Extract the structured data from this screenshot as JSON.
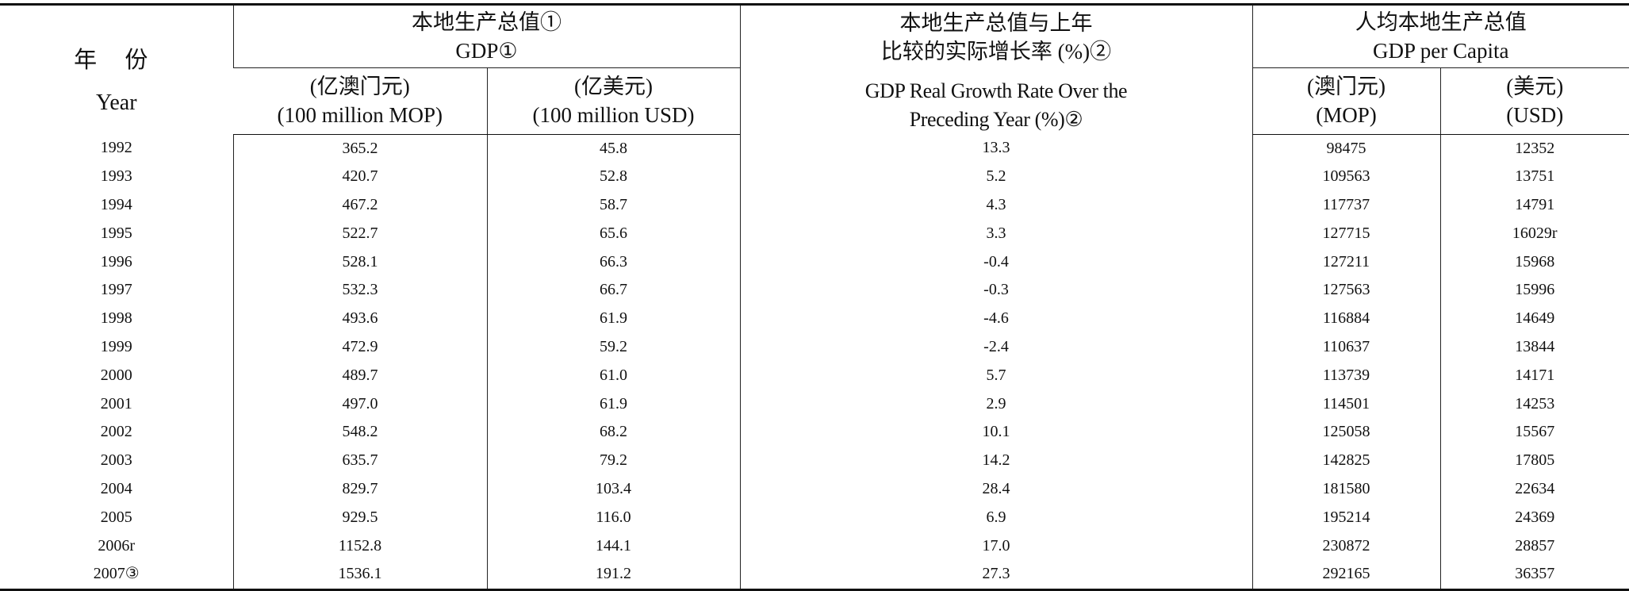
{
  "table": {
    "header": {
      "year_zh": "年 份",
      "year_en": "Year",
      "gdp_zh": "本地生产总值①",
      "gdp_en": "GDP①",
      "growth_zh_1": "本地生产总值与上年",
      "growth_zh_2": "比较的实际增长率 (%)②",
      "growth_en_1": "GDP Real Growth Rate Over the",
      "growth_en_2": "Preceding Year (%)②",
      "percap_zh": "人均本地生产总值",
      "percap_en": "GDP per Capita",
      "mop_zh": "(亿澳门元)",
      "mop_en": "(100 million MOP)",
      "usd_zh": "(亿美元)",
      "usd_en": "(100 million USD)",
      "pc_mop_zh": "(澳门元)",
      "pc_mop_en": "(MOP)",
      "pc_usd_zh": "(美元)",
      "pc_usd_en": "(USD)"
    },
    "rows": [
      {
        "year": "1992",
        "gdp_mop": "365.2",
        "gdp_usd": "45.8",
        "growth": "13.3",
        "pc_mop": "98475",
        "pc_usd": "12352"
      },
      {
        "year": "1993",
        "gdp_mop": "420.7",
        "gdp_usd": "52.8",
        "growth": "5.2",
        "pc_mop": "109563",
        "pc_usd": "13751"
      },
      {
        "year": "1994",
        "gdp_mop": "467.2",
        "gdp_usd": "58.7",
        "growth": "4.3",
        "pc_mop": "117737",
        "pc_usd": "14791"
      },
      {
        "year": "1995",
        "gdp_mop": "522.7",
        "gdp_usd": "65.6",
        "growth": "3.3",
        "pc_mop": "127715",
        "pc_usd": "16029r"
      },
      {
        "year": "1996",
        "gdp_mop": "528.1",
        "gdp_usd": "66.3",
        "growth": "-0.4",
        "pc_mop": "127211",
        "pc_usd": "15968"
      },
      {
        "year": "1997",
        "gdp_mop": "532.3",
        "gdp_usd": "66.7",
        "growth": "-0.3",
        "pc_mop": "127563",
        "pc_usd": "15996"
      },
      {
        "year": "1998",
        "gdp_mop": "493.6",
        "gdp_usd": "61.9",
        "growth": "-4.6",
        "pc_mop": "116884",
        "pc_usd": "14649"
      },
      {
        "year": "1999",
        "gdp_mop": "472.9",
        "gdp_usd": "59.2",
        "growth": "-2.4",
        "pc_mop": "110637",
        "pc_usd": "13844"
      },
      {
        "year": "2000",
        "gdp_mop": "489.7",
        "gdp_usd": "61.0",
        "growth": "5.7",
        "pc_mop": "113739",
        "pc_usd": "14171"
      },
      {
        "year": "2001",
        "gdp_mop": "497.0",
        "gdp_usd": "61.9",
        "growth": "2.9",
        "pc_mop": "114501",
        "pc_usd": "14253"
      },
      {
        "year": "2002",
        "gdp_mop": "548.2",
        "gdp_usd": "68.2",
        "growth": "10.1",
        "pc_mop": "125058",
        "pc_usd": "15567"
      },
      {
        "year": "2003",
        "gdp_mop": "635.7",
        "gdp_usd": "79.2",
        "growth": "14.2",
        "pc_mop": "142825",
        "pc_usd": "17805"
      },
      {
        "year": "2004",
        "gdp_mop": "829.7",
        "gdp_usd": "103.4",
        "growth": "28.4",
        "pc_mop": "181580",
        "pc_usd": "22634"
      },
      {
        "year": "2005",
        "gdp_mop": "929.5",
        "gdp_usd": "116.0",
        "growth": "6.9",
        "pc_mop": "195214",
        "pc_usd": "24369"
      },
      {
        "year": "2006r",
        "gdp_mop": "1152.8",
        "gdp_usd": "144.1",
        "growth": "17.0",
        "pc_mop": "230872",
        "pc_usd": "28857"
      },
      {
        "year": "2007③",
        "gdp_mop": "1536.1",
        "gdp_usd": "191.2",
        "growth": "27.3",
        "pc_mop": "292165",
        "pc_usd": "36357"
      }
    ]
  }
}
